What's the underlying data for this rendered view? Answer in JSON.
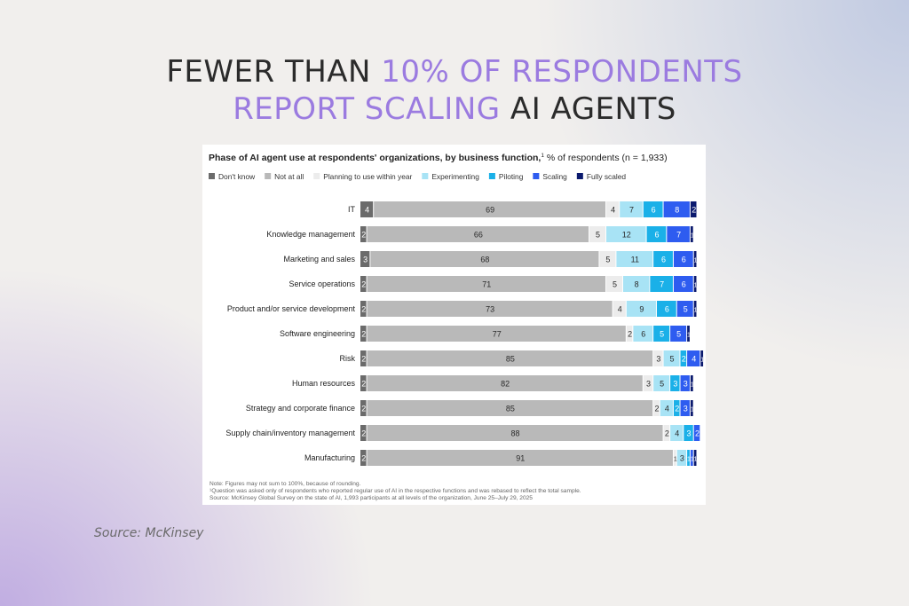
{
  "headline": {
    "part1": "FEWER THAN ",
    "part2": "10% OF RESPONDENTS",
    "part3": "REPORT SCALING",
    "part4": " AI AGENTS"
  },
  "source_caption": "Source: McKinsey",
  "colors": {
    "accent": "#9b7be0",
    "dont_know": "#6b6b6b",
    "not_at_all": "#b9b9b9",
    "planning": "#ececec",
    "experimenting": "#a8e3f5",
    "piloting": "#1ab0e8",
    "scaling": "#2e5cf0",
    "fully_scaled": "#0b1a6e"
  },
  "chart_data": {
    "type": "bar",
    "orientation": "horizontal-stacked",
    "title": "Phase of AI agent use at respondents' organizations, by business function,",
    "title_superscript": "1",
    "subtitle": "% of respondents (n = 1,933)",
    "legend_placement": "top",
    "categories": [
      "IT",
      "Knowledge management",
      "Marketing and sales",
      "Service operations",
      "Product and/or service development",
      "Software engineering",
      "Risk",
      "Human resources",
      "Strategy and corporate finance",
      "Supply chain/inventory management",
      "Manufacturing"
    ],
    "series": [
      {
        "name": "Don't know",
        "color": "#6b6b6b",
        "values": [
          4,
          2,
          3,
          2,
          2,
          2,
          2,
          2,
          2,
          2,
          2
        ]
      },
      {
        "name": "Not at all",
        "color": "#b9b9b9",
        "values": [
          69,
          66,
          68,
          71,
          73,
          77,
          85,
          82,
          85,
          88,
          91
        ]
      },
      {
        "name": "Planning to use within year",
        "color": "#ececec",
        "values": [
          4,
          5,
          5,
          5,
          4,
          2,
          3,
          3,
          2,
          2,
          1
        ]
      },
      {
        "name": "Experimenting",
        "color": "#a8e3f5",
        "values": [
          7,
          12,
          11,
          8,
          9,
          6,
          5,
          5,
          4,
          4,
          3
        ]
      },
      {
        "name": "Piloting",
        "color": "#1ab0e8",
        "values": [
          6,
          6,
          6,
          7,
          6,
          5,
          2,
          3,
          2,
          3,
          1
        ]
      },
      {
        "name": "Scaling",
        "color": "#2e5cf0",
        "values": [
          8,
          7,
          6,
          6,
          5,
          5,
          4,
          3,
          3,
          2,
          1
        ]
      },
      {
        "name": "Fully scaled",
        "color": "#0b1a6e",
        "values": [
          2,
          1,
          1,
          1,
          1,
          1,
          1,
          1,
          1,
          0,
          1
        ]
      }
    ],
    "xlim": [
      0,
      100
    ],
    "notes": [
      "Note: Figures may not sum to 100%, because of rounding.",
      "¹Question was asked only of respondents who reported regular use of AI in the respective functions and was rebased to reflect the total sample.",
      "Source: McKinsey Global Survey on the state of AI, 1,993 participants at all levels of the organization, June 25–July 29, 2025"
    ]
  }
}
